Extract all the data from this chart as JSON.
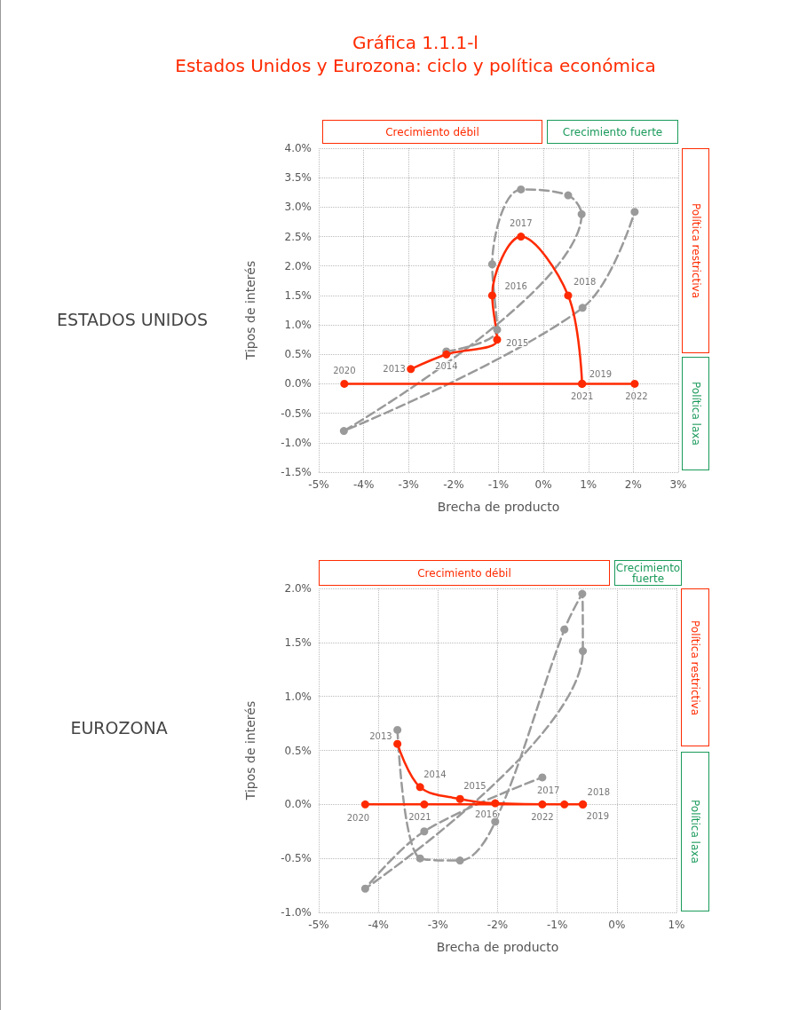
{
  "chart_data": [
    {
      "type": "line",
      "title": "Gráfica 1.1.1-l",
      "subtitle": "Estados Unidos y Eurozona: ciclo y política económica",
      "xlabel": "Brecha de producto",
      "ylabel": "Tipos de interés",
      "annotations": [
        "ESTADOS UNIDOS",
        "Crecimiento débil",
        "Crecimiento fuerte",
        "Política restrictiva",
        "Política laxa",
        {
          "text": "2013",
          "x": -2.95,
          "y": 0.25
        },
        {
          "text": "2014",
          "x": -2.16,
          "y": 0.5
        },
        {
          "text": "2015",
          "x": -1.03,
          "y": 0.75
        },
        {
          "text": "2016",
          "x": -1.14,
          "y": 1.5
        },
        {
          "text": "2017",
          "x": -0.5,
          "y": 2.5
        },
        {
          "text": "2018",
          "x": 0.55,
          "y": 1.5
        },
        {
          "text": "2019",
          "x": 0.86,
          "y": 0
        },
        {
          "text": "2020",
          "x": -4.43,
          "y": 0
        },
        {
          "text": "2021",
          "x": 0.86,
          "y": 0
        },
        {
          "text": "2022",
          "x": 2.03,
          "y": 0
        }
      ],
      "xlim": [
        -5,
        3
      ],
      "ylim": [
        -1.5,
        4.0
      ],
      "xticks": [
        {
          "value": -5,
          "label": "-5%"
        },
        {
          "value": -4,
          "label": "-4%"
        },
        {
          "value": -3,
          "label": "-3%"
        },
        {
          "value": -2,
          "label": "-2%"
        },
        {
          "value": -1,
          "label": "-1%"
        },
        {
          "value": 0,
          "label": "0%"
        },
        {
          "value": 1,
          "label": "1%"
        },
        {
          "value": 2,
          "label": "2%"
        },
        {
          "value": 3,
          "label": "3%"
        }
      ],
      "yticks": [
        {
          "value": -1.5,
          "label": "-1.5%"
        },
        {
          "value": -1.0,
          "label": "-1.0%"
        },
        {
          "value": -0.5,
          "label": "-0.5%"
        },
        {
          "value": 0,
          "label": "0.0%"
        },
        {
          "value": 0.5,
          "label": "0.5%"
        },
        {
          "value": 1.0,
          "label": "1.0%"
        },
        {
          "value": 1.5,
          "label": "1.5%"
        },
        {
          "value": 2.0,
          "label": "2.0%"
        },
        {
          "value": 2.5,
          "label": "2.5%"
        },
        {
          "value": 3.0,
          "label": "3.0%"
        },
        {
          "value": 3.5,
          "label": "3.5%"
        },
        {
          "value": 4.0,
          "label": "4.0%"
        }
      ],
      "grid": true,
      "marker": "circle",
      "series": [
        {
          "color": "#9a9a9a",
          "line_style": "dashed",
          "x": [
            -2.16,
            -1.03,
            -1.14,
            -0.5,
            0.55,
            0.85,
            -4.44,
            0.87,
            2.03
          ],
          "values": [
            0.55,
            0.92,
            2.03,
            3.3,
            3.2,
            2.88,
            -0.8,
            1.29,
            2.92
          ]
        },
        {
          "color": "#ff2a00",
          "line_style": "solid",
          "x": [
            -2.95,
            -2.16,
            -1.03,
            -1.14,
            -0.5,
            0.55,
            0.86,
            -4.43,
            0.86,
            2.03
          ],
          "values": [
            0.25,
            0.5,
            0.75,
            1.5,
            2.5,
            1.5,
            0,
            0,
            0,
            0
          ]
        }
      ]
    },
    {
      "type": "line",
      "xlabel": "Brecha de producto",
      "ylabel": "Tipos de interés",
      "annotations": [
        "EUROZONA",
        "Crecimiento débil",
        "Crecimiento fuerte",
        "Política restrictiva",
        "Política laxa",
        {
          "text": "2013",
          "x": -3.68,
          "y": 0.56
        },
        {
          "text": "2014",
          "x": -3.3,
          "y": 0.16
        },
        {
          "text": "2015",
          "x": -2.63,
          "y": 0.05
        },
        {
          "text": "2016",
          "x": -2.04,
          "y": 0.01
        },
        {
          "text": "2017",
          "x": -0.88,
          "y": 0
        },
        {
          "text": "2018",
          "x": -0.57,
          "y": 0
        },
        {
          "text": "2019",
          "x": -0.57,
          "y": 0
        },
        {
          "text": "2020",
          "x": -4.22,
          "y": 0
        },
        {
          "text": "2021",
          "x": -3.23,
          "y": 0
        },
        {
          "text": "2022",
          "x": -1.25,
          "y": 0
        }
      ],
      "xlim": [
        -5,
        1
      ],
      "ylim": [
        -1.0,
        2.0
      ],
      "xticks": [
        {
          "value": -5,
          "label": "-5%"
        },
        {
          "value": -4,
          "label": "-4%"
        },
        {
          "value": -3,
          "label": "-3%"
        },
        {
          "value": -2,
          "label": "-2%"
        },
        {
          "value": -1,
          "label": "-1%"
        },
        {
          "value": 0,
          "label": "0%"
        },
        {
          "value": 1,
          "label": "1%"
        }
      ],
      "yticks": [
        {
          "value": -1.0,
          "label": "-1.0%"
        },
        {
          "value": -0.5,
          "label": "-0.5%"
        },
        {
          "value": 0,
          "label": "0.0%"
        },
        {
          "value": 0.5,
          "label": "0.5%"
        },
        {
          "value": 1.0,
          "label": "1.0%"
        },
        {
          "value": 1.5,
          "label": "1.5%"
        },
        {
          "value": 2.0,
          "label": "2.0%"
        }
      ],
      "grid": true,
      "marker": "circle",
      "series": [
        {
          "color": "#9a9a9a",
          "line_style": "dashed",
          "x": [
            -3.68,
            -3.3,
            -2.63,
            -2.04,
            -0.88,
            -0.58,
            -0.57,
            -4.22,
            -3.23,
            -1.25
          ],
          "values": [
            0.69,
            -0.5,
            -0.52,
            -0.16,
            1.62,
            1.95,
            1.42,
            -0.78,
            -0.25,
            0.25
          ]
        },
        {
          "color": "#ff2a00",
          "line_style": "solid",
          "x": [
            -3.68,
            -3.3,
            -2.63,
            -2.04,
            -0.88,
            -0.57,
            -0.57,
            -4.22,
            -3.23,
            -1.25
          ],
          "values": [
            0.56,
            0.16,
            0.05,
            0.01,
            0,
            0,
            0,
            0,
            0,
            0
          ]
        }
      ]
    }
  ]
}
